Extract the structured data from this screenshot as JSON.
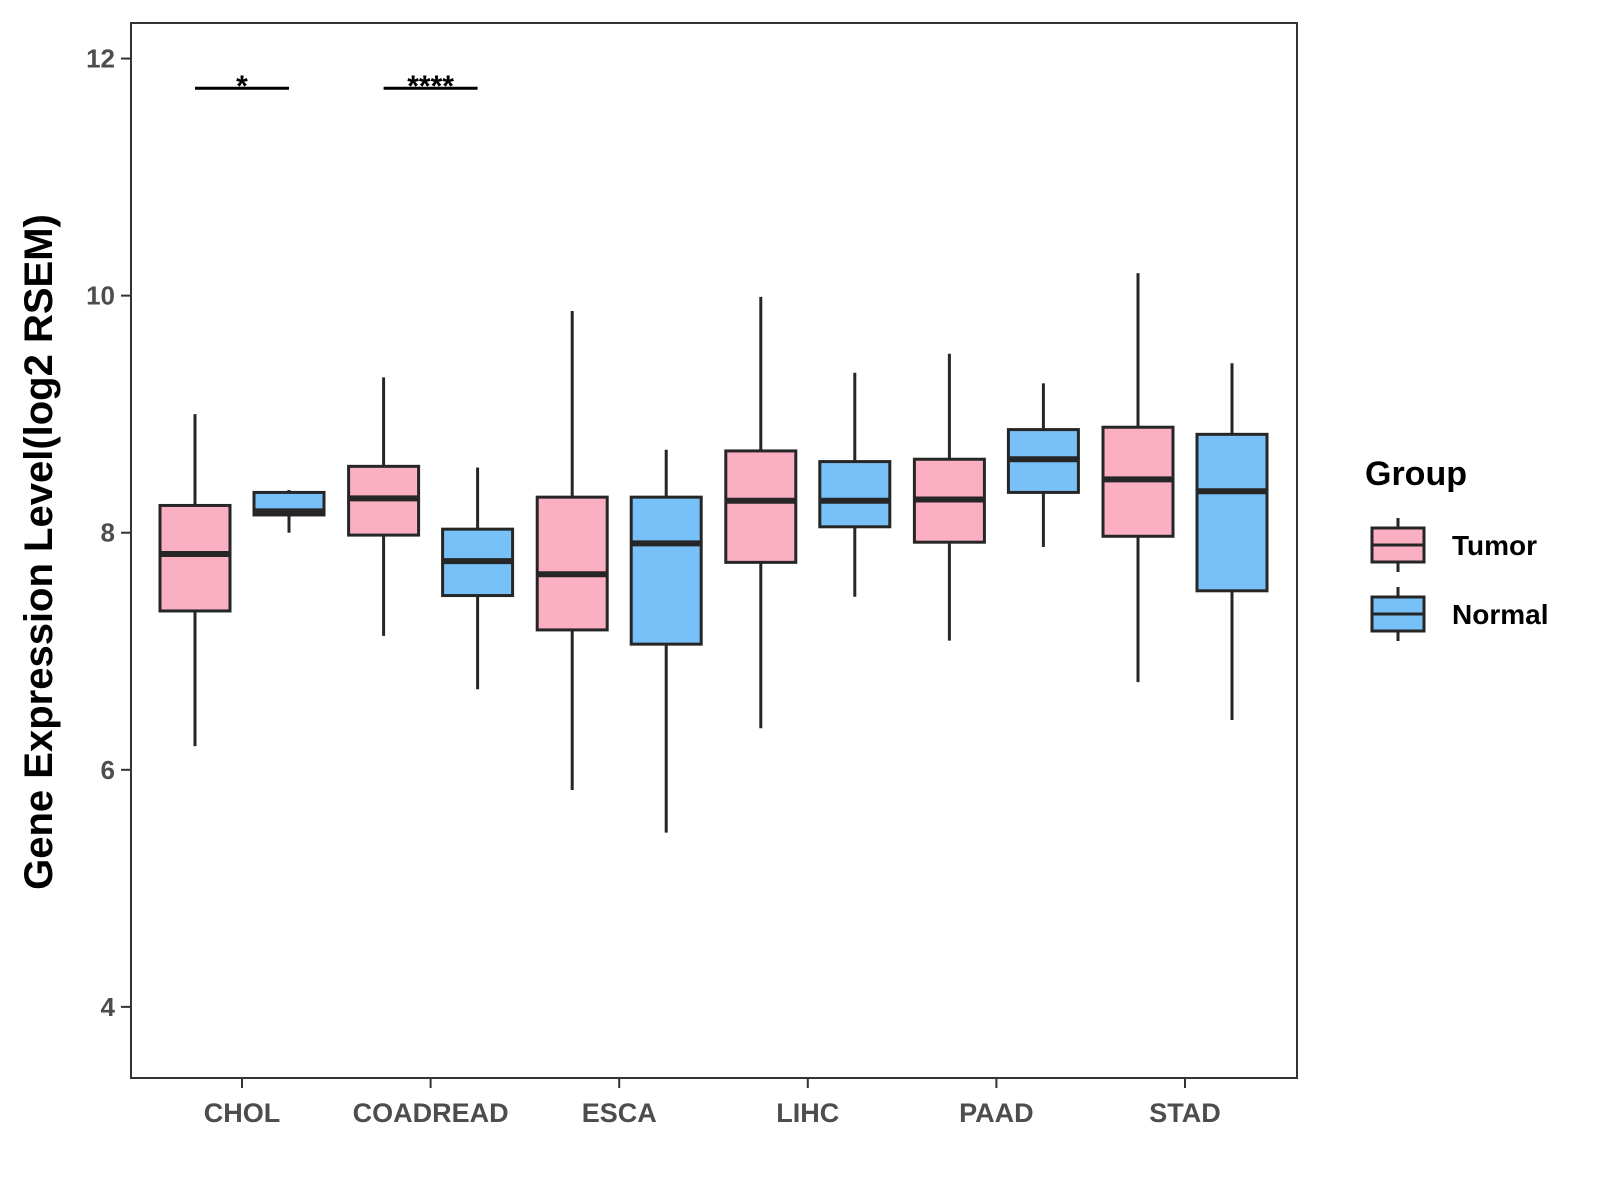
{
  "chart_data": {
    "type": "boxplot",
    "title": "",
    "xlabel": "",
    "ylabel": "Gene Expression Level(log2 RSEM)",
    "ylim": [
      3.4,
      12.3
    ],
    "yticks": [
      4,
      6,
      8,
      10,
      12
    ],
    "categories": [
      "CHOL",
      "COADREAD",
      "ESCA",
      "LIHC",
      "PAAD",
      "STAD"
    ],
    "legend": {
      "title": "Group",
      "position": "right",
      "entries": [
        "Tumor",
        "Normal"
      ]
    },
    "colors": {
      "Tumor": "#FAB0C2",
      "Normal": "#78C1F8",
      "stroke": "#262626"
    },
    "series": [
      {
        "name": "Tumor",
        "boxes": [
          {
            "category": "CHOL",
            "min": 6.2,
            "q1": 7.34,
            "median": 7.82,
            "q3": 8.23,
            "max": 9.0
          },
          {
            "category": "COADREAD",
            "min": 7.13,
            "q1": 7.98,
            "median": 8.29,
            "q3": 8.56,
            "max": 9.31
          },
          {
            "category": "ESCA",
            "min": 5.83,
            "q1": 7.18,
            "median": 7.65,
            "q3": 8.3,
            "max": 9.87
          },
          {
            "category": "LIHC",
            "min": 6.35,
            "q1": 7.75,
            "median": 8.27,
            "q3": 8.69,
            "max": 9.99
          },
          {
            "category": "PAAD",
            "min": 7.09,
            "q1": 7.92,
            "median": 8.28,
            "q3": 8.62,
            "max": 9.51
          },
          {
            "category": "STAD",
            "min": 6.74,
            "q1": 7.97,
            "median": 8.45,
            "q3": 8.89,
            "max": 10.19
          }
        ]
      },
      {
        "name": "Normal",
        "boxes": [
          {
            "category": "CHOL",
            "min": 8.0,
            "q1": 8.15,
            "median": 8.18,
            "q3": 8.34,
            "max": 8.36
          },
          {
            "category": "COADREAD",
            "min": 6.68,
            "q1": 7.47,
            "median": 7.76,
            "q3": 8.03,
            "max": 8.55
          },
          {
            "category": "ESCA",
            "min": 5.47,
            "q1": 7.06,
            "median": 7.91,
            "q3": 8.3,
            "max": 8.7
          },
          {
            "category": "LIHC",
            "min": 7.46,
            "q1": 8.05,
            "median": 8.27,
            "q3": 8.6,
            "max": 9.35
          },
          {
            "category": "PAAD",
            "min": 7.88,
            "q1": 8.34,
            "median": 8.62,
            "q3": 8.87,
            "max": 9.26
          },
          {
            "category": "STAD",
            "min": 6.42,
            "q1": 7.51,
            "median": 8.35,
            "q3": 8.83,
            "max": 9.43
          }
        ]
      }
    ],
    "annotations": [
      {
        "category": "CHOL",
        "label": "*",
        "y": 11.75
      },
      {
        "category": "COADREAD",
        "label": "****",
        "y": 11.75
      }
    ]
  }
}
